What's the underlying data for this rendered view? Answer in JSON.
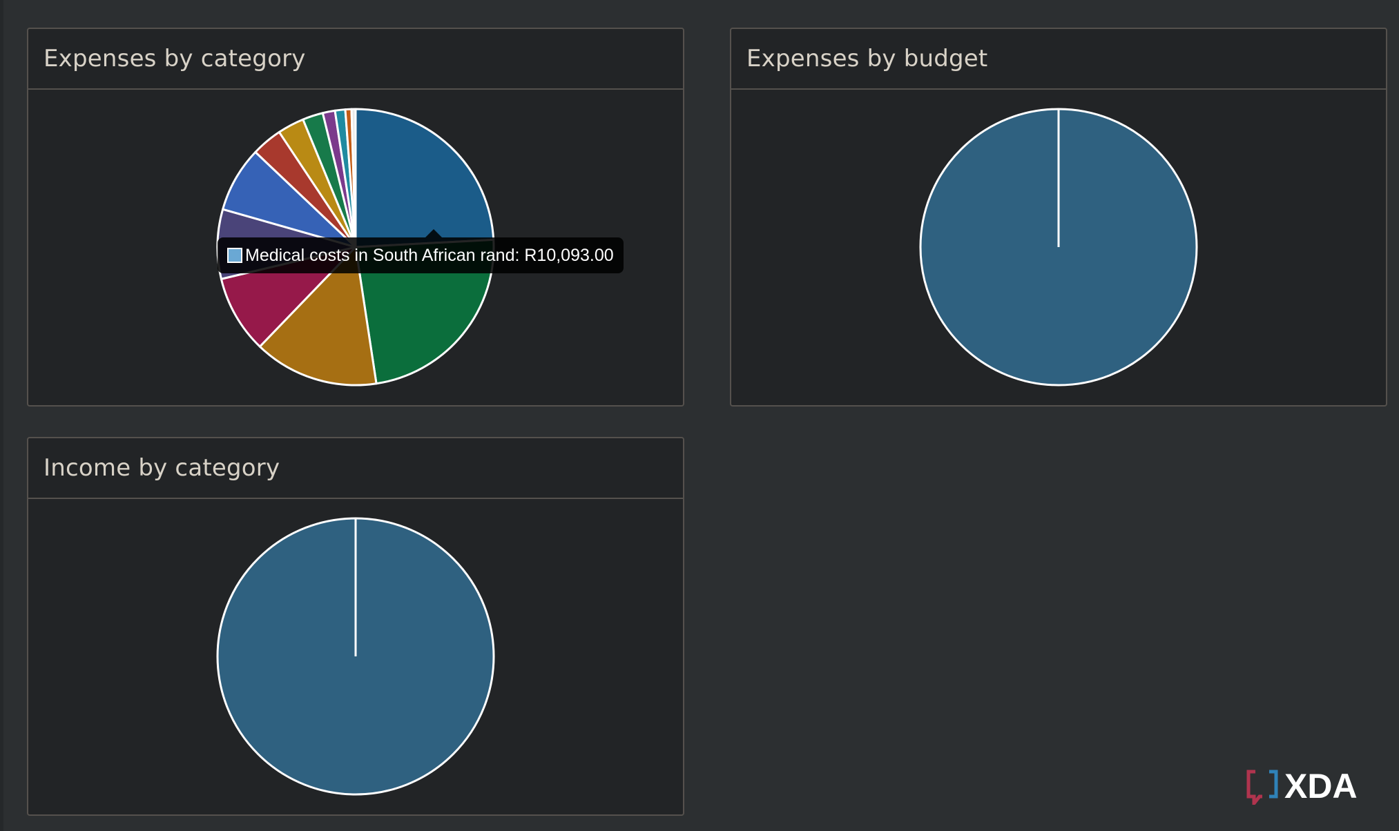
{
  "panels": {
    "expenses_by_category": {
      "title": "Expenses by category"
    },
    "expenses_by_budget": {
      "title": "Expenses by budget"
    },
    "income_by_category": {
      "title": "Income by category"
    }
  },
  "tooltip": {
    "text": "Medical costs in South African rand: R10,093.00",
    "swatch_color": "#6aa8d4"
  },
  "watermark": {
    "text": "XDA"
  },
  "colors": {
    "background": "#2c2f31",
    "panel": "#222426",
    "border": "#55514d",
    "slice_stroke": "#ffffff"
  },
  "chart_data": [
    {
      "type": "pie",
      "title": "Expenses by category",
      "slices": [
        {
          "label": "Medical costs",
          "value": 10093,
          "color": "#1b5c89"
        },
        {
          "value": 9800,
          "color": "#0b6e3c"
        },
        {
          "value": 6100,
          "color": "#a66f13"
        },
        {
          "value": 3800,
          "color": "#96194a"
        },
        {
          "value": 3400,
          "color": "#4a4479"
        },
        {
          "value": 3200,
          "color": "#3662b6"
        },
        {
          "value": 1500,
          "color": "#a8392d"
        },
        {
          "value": 1300,
          "color": "#b98a14"
        },
        {
          "value": 1000,
          "color": "#177a4a"
        },
        {
          "value": 600,
          "color": "#7b3a8c"
        },
        {
          "value": 500,
          "color": "#1f8aa0"
        },
        {
          "value": 300,
          "color": "#c25c16"
        },
        {
          "value": 200,
          "color": "#e8e8e8"
        }
      ]
    },
    {
      "type": "pie",
      "title": "Expenses by budget",
      "slices": [
        {
          "value": 100,
          "color": "#2f6180"
        }
      ]
    },
    {
      "type": "pie",
      "title": "Income by category",
      "slices": [
        {
          "value": 100,
          "color": "#2f6180"
        }
      ]
    }
  ]
}
